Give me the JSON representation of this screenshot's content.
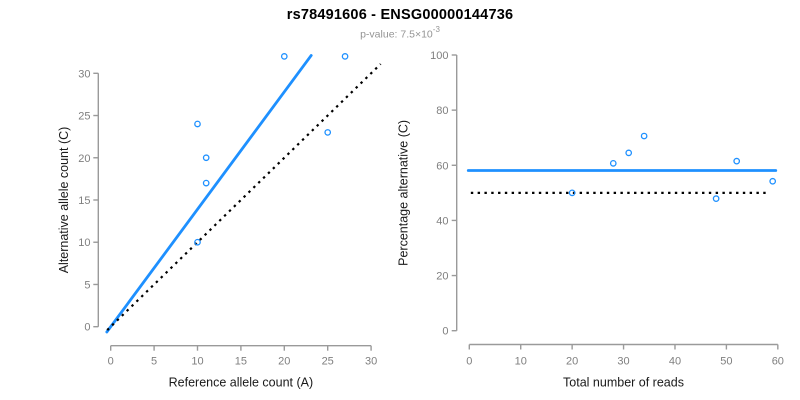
{
  "figure": {
    "title": "rs78491606 - ENSG00000144736",
    "subtitle_prefix": "p-value: 7.5×10",
    "subtitle_exponent": "-3",
    "background": "#ffffff"
  },
  "colors": {
    "accent_blue": "#1E90FF",
    "dotted_line": "#000000",
    "axis_stroke": "#9a9a9a",
    "tick_label": "#7f7f7f",
    "axis_title": "#1a1a1a",
    "subtitle_gray": "#949494",
    "title_color": "#000000"
  },
  "chart_data": [
    {
      "type": "scatter",
      "name": "allele-counts",
      "xlabel": "Reference allele count (A)",
      "ylabel": "Alternative allele count (C)",
      "xticks": [
        0,
        5,
        10,
        15,
        20,
        25,
        30
      ],
      "yticks": [
        0,
        5,
        10,
        15,
        20,
        25,
        30
      ],
      "xlim": [
        -1.2,
        31.2
      ],
      "ylim": [
        -2.5,
        33.3
      ],
      "grid": false,
      "legend": null,
      "marker": "open-circle",
      "points": [
        [
          20,
          32
        ],
        [
          27,
          32
        ],
        [
          10,
          24
        ],
        [
          25,
          23
        ],
        [
          11,
          20
        ],
        [
          11,
          17
        ],
        [
          10,
          10
        ]
      ],
      "lines": [
        {
          "role": "fit",
          "style": "solid",
          "color": "accent",
          "slope": 1.39,
          "intercept": 0,
          "x_range": [
            -0.45,
            23.1
          ]
        },
        {
          "role": "identity",
          "style": "dotted",
          "color": "black",
          "slope": 1,
          "intercept": 0,
          "x_range": [
            -0.4,
            31.1
          ]
        }
      ]
    },
    {
      "type": "scatter",
      "name": "percentage-vs-depth",
      "xlabel": "Total number of reads",
      "ylabel": "Percentage alternative (C)",
      "xticks": [
        0,
        10,
        20,
        30,
        40,
        50,
        60
      ],
      "yticks": [
        0,
        20,
        40,
        60,
        80,
        100
      ],
      "xlim": [
        -2.4,
        62.4
      ],
      "ylim": [
        -4,
        104
      ],
      "grid": false,
      "legend": null,
      "marker": "open-circle",
      "points": [
        [
          52,
          61.5
        ],
        [
          59,
          54.2
        ],
        [
          34,
          70.6
        ],
        [
          48,
          47.9
        ],
        [
          31,
          64.5
        ],
        [
          28,
          60.7
        ],
        [
          20,
          50
        ]
      ],
      "lines": [
        {
          "role": "mean",
          "style": "solid",
          "color": "accent",
          "y": 58.1,
          "x_range": [
            -0.2,
            59.6
          ]
        },
        {
          "role": "null-50pct",
          "style": "dotted",
          "color": "black",
          "y": 50,
          "x_range": [
            0.3,
            58
          ]
        }
      ]
    }
  ]
}
